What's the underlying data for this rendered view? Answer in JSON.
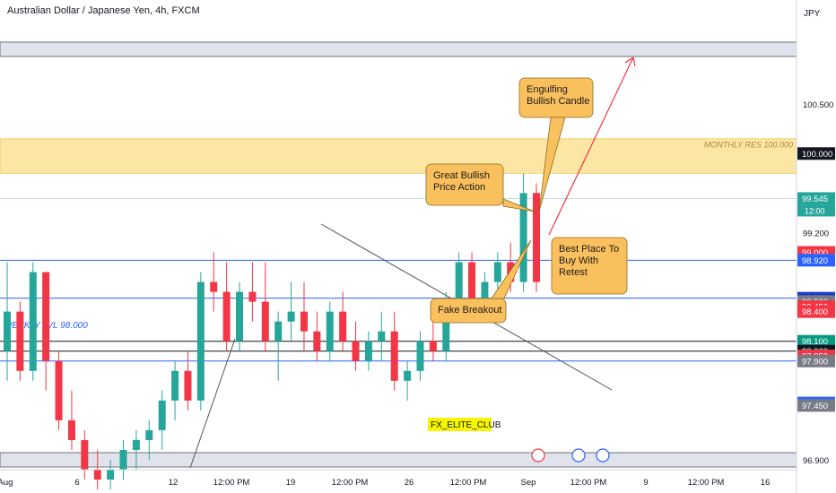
{
  "header": {
    "title": "Australian Dollar / Japanese Yen, 4h, FXCM",
    "currency": "JPY"
  },
  "chart_data": {
    "type": "candlestick",
    "symbol": "AUDJPY",
    "timeframe": "4h",
    "ylim": [
      96.8,
      101.3
    ],
    "x_ticks": [
      "Aug",
      "6",
      "12",
      "12:00 PM",
      "19",
      "12:00 PM",
      "26",
      "12:00 PM",
      "Sep",
      "12:00 PM",
      "9",
      "12:00 PM",
      "16"
    ],
    "y_ticks": [
      "100.500",
      "99.200",
      "96.900"
    ],
    "candles": [
      {
        "o": 98.0,
        "h": 98.9,
        "l": 97.7,
        "c": 98.4
      },
      {
        "o": 98.4,
        "h": 98.5,
        "l": 97.7,
        "c": 97.8
      },
      {
        "o": 97.8,
        "h": 98.9,
        "l": 97.7,
        "c": 98.8
      },
      {
        "o": 98.8,
        "h": 98.8,
        "l": 97.6,
        "c": 97.9
      },
      {
        "o": 97.9,
        "h": 98.0,
        "l": 97.2,
        "c": 97.3
      },
      {
        "o": 97.3,
        "h": 97.6,
        "l": 97.0,
        "c": 97.1
      },
      {
        "o": 97.1,
        "h": 97.2,
        "l": 96.7,
        "c": 96.8
      },
      {
        "o": 96.8,
        "h": 97.0,
        "l": 96.6,
        "c": 96.7
      },
      {
        "o": 96.7,
        "h": 96.9,
        "l": 96.6,
        "c": 96.8
      },
      {
        "o": 96.8,
        "h": 97.1,
        "l": 96.7,
        "c": 97.0
      },
      {
        "o": 97.0,
        "h": 97.2,
        "l": 96.8,
        "c": 97.1
      },
      {
        "o": 97.1,
        "h": 97.3,
        "l": 96.9,
        "c": 97.2
      },
      {
        "o": 97.2,
        "h": 97.6,
        "l": 97.0,
        "c": 97.5
      },
      {
        "o": 97.5,
        "h": 97.9,
        "l": 97.3,
        "c": 97.8
      },
      {
        "o": 97.8,
        "h": 98.0,
        "l": 97.4,
        "c": 97.5
      },
      {
        "o": 97.5,
        "h": 98.8,
        "l": 97.4,
        "c": 98.7
      },
      {
        "o": 98.7,
        "h": 99.0,
        "l": 98.4,
        "c": 98.6
      },
      {
        "o": 98.6,
        "h": 98.9,
        "l": 98.0,
        "c": 98.1
      },
      {
        "o": 98.1,
        "h": 98.7,
        "l": 98.0,
        "c": 98.6
      },
      {
        "o": 98.6,
        "h": 98.9,
        "l": 98.3,
        "c": 98.5
      },
      {
        "o": 98.5,
        "h": 98.9,
        "l": 98.0,
        "c": 98.1
      },
      {
        "o": 98.1,
        "h": 98.4,
        "l": 97.7,
        "c": 98.3
      },
      {
        "o": 98.3,
        "h": 98.7,
        "l": 98.1,
        "c": 98.4
      },
      {
        "o": 98.4,
        "h": 98.7,
        "l": 98.0,
        "c": 98.2
      },
      {
        "o": 98.2,
        "h": 98.4,
        "l": 97.9,
        "c": 98.0
      },
      {
        "o": 98.0,
        "h": 98.5,
        "l": 97.9,
        "c": 98.4
      },
      {
        "o": 98.4,
        "h": 98.6,
        "l": 98.0,
        "c": 98.1
      },
      {
        "o": 98.1,
        "h": 98.3,
        "l": 97.8,
        "c": 97.9
      },
      {
        "o": 97.9,
        "h": 98.2,
        "l": 97.8,
        "c": 98.1
      },
      {
        "o": 98.1,
        "h": 98.4,
        "l": 97.9,
        "c": 98.2
      },
      {
        "o": 98.2,
        "h": 98.4,
        "l": 97.6,
        "c": 97.7
      },
      {
        "o": 97.7,
        "h": 97.9,
        "l": 97.5,
        "c": 97.8
      },
      {
        "o": 97.8,
        "h": 98.2,
        "l": 97.7,
        "c": 98.1
      },
      {
        "o": 98.1,
        "h": 98.3,
        "l": 97.9,
        "c": 98.0
      },
      {
        "o": 98.0,
        "h": 98.6,
        "l": 97.9,
        "c": 98.5
      },
      {
        "o": 98.5,
        "h": 99.0,
        "l": 98.4,
        "c": 98.9
      },
      {
        "o": 98.9,
        "h": 99.0,
        "l": 98.4,
        "c": 98.5
      },
      {
        "o": 98.5,
        "h": 98.8,
        "l": 98.3,
        "c": 98.7
      },
      {
        "o": 98.7,
        "h": 99.0,
        "l": 98.6,
        "c": 98.9
      },
      {
        "o": 98.9,
        "h": 99.1,
        "l": 98.6,
        "c": 98.7
      },
      {
        "o": 98.7,
        "h": 99.8,
        "l": 98.6,
        "c": 99.6
      },
      {
        "o": 99.6,
        "h": 99.7,
        "l": 98.6,
        "c": 98.7
      }
    ],
    "horizontal_levels": [
      {
        "price": 98.92,
        "label": "98.920",
        "color": "#2962ff"
      },
      {
        "price": 98.536,
        "label": "98.536",
        "color": "#2962ff"
      },
      {
        "price": 98.1,
        "label": "98.100",
        "color": "#131722"
      },
      {
        "price": 98.0,
        "label": "98.000",
        "color": "#131722"
      },
      {
        "price": 97.9,
        "label": "97.900",
        "color": "#2962ff"
      }
    ],
    "price_tags": [
      {
        "price": 100.0,
        "label": "100.000",
        "bg": "#131722",
        "fg": "#ffffff"
      },
      {
        "price": 99.545,
        "label": "99.545",
        "sub": "12:00",
        "bg": "#26a69a",
        "fg": "#ffffff"
      },
      {
        "price": 99.0,
        "label": "99.000",
        "bg": "#f23645",
        "fg": "#ffffff"
      },
      {
        "price": 98.92,
        "label": "98.920",
        "bg": "#2962ff",
        "fg": "#ffffff"
      },
      {
        "price": 98.536,
        "label": "98.536",
        "bg": "#1e3cc8",
        "fg": "#ffffff"
      },
      {
        "price": 98.5,
        "label": "98.500",
        "bg": "#787b86",
        "fg": "#ffffff"
      },
      {
        "price": 98.45,
        "label": "98.450",
        "bg": "#f23645",
        "fg": "#ffffff"
      },
      {
        "price": 98.4,
        "label": "98.400",
        "bg": "#f23645",
        "fg": "#ffffff"
      },
      {
        "price": 98.1,
        "label": "98.100",
        "bg": "#089981",
        "fg": "#ffffff"
      },
      {
        "price": 98.0,
        "label": "98.000",
        "bg": "#131722",
        "fg": "#ffffff"
      },
      {
        "price": 97.95,
        "label": "97.950",
        "bg": "#787b86",
        "fg": "#ffffff"
      },
      {
        "price": 97.95,
        "label": "97.950",
        "bg": "#f23645",
        "fg": "#ffffff"
      },
      {
        "price": 97.9,
        "label": "97.900",
        "bg": "#787b86",
        "fg": "#ffffff"
      },
      {
        "price": 97.475,
        "label": "97.475",
        "bg": "#2962ff",
        "fg": "#ffffff"
      },
      {
        "price": 97.45,
        "label": "97.450",
        "bg": "#787b86",
        "fg": "#ffffff"
      }
    ],
    "zones": [
      {
        "label": "MONTHLY RES 100.000",
        "from": 99.8,
        "to": 100.15,
        "color": "#fbe6a3"
      }
    ],
    "annotations": [
      {
        "text": "Engulfing\nBullish Candle"
      },
      {
        "text": "Great Bullish\nPrice Action"
      },
      {
        "text": "Best Place To\nBuy With\nRetest"
      },
      {
        "text": "Fake Breakout"
      },
      {
        "text": "FX_ELITE_CLUB"
      },
      {
        "text": "WEEKLY LVL 98.000"
      }
    ],
    "colors": {
      "up": "#26a69a",
      "down": "#f23645",
      "box": "#fbc05e",
      "box_border": "#8a6d1e",
      "arrow": "#f23645",
      "hline": "#2962ff"
    }
  }
}
